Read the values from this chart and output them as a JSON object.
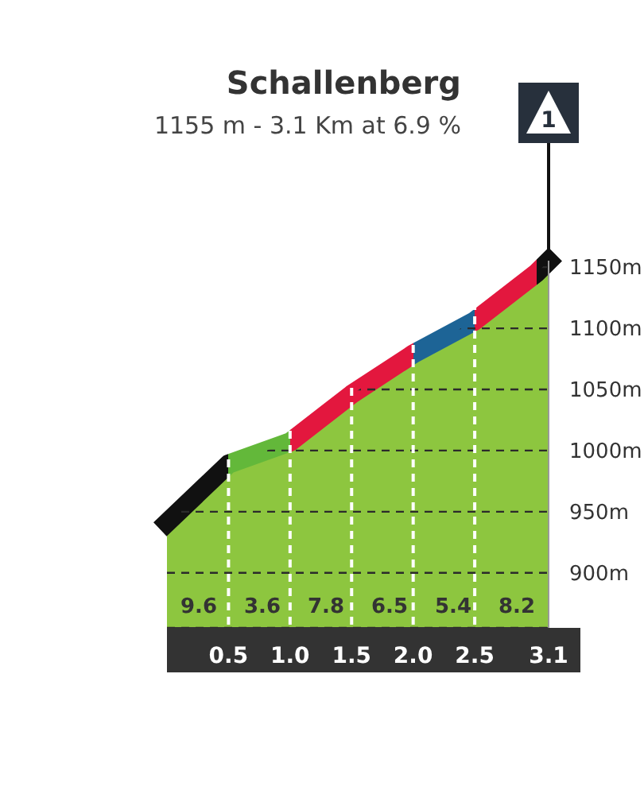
{
  "chart_data": {
    "type": "area",
    "title": "Schallenberg",
    "subtitle": "1155 m - 3.1 Km at 6.9 %",
    "x": [
      0,
      0.5,
      1,
      1.5,
      2,
      2.5,
      3,
      3.1
    ],
    "values": [
      941,
      989,
      1007,
      1046,
      1079,
      1106,
      1145,
      1155
    ],
    "color": "#8dc63f",
    "colors": [
      "#111111",
      "#63b83a",
      "#e3173e",
      "#e3173e",
      "#1d6496",
      "#e3173e",
      "#111111",
      "#111111"
    ],
    "xlim": [
      0,
      3.1
    ],
    "xticks": [
      0.5,
      {
        "value": 1,
        "label": "1.0"
      },
      1.5,
      {
        "value": 2,
        "label": "2.0"
      },
      2.5,
      3.1
    ],
    "ylim": [
      855,
      1180
    ],
    "yticks": [
      {
        "value": 900,
        "label": "900m"
      },
      {
        "value": 950,
        "label": "950m"
      },
      {
        "value": 1000,
        "label": "1000m"
      },
      {
        "value": 1050,
        "label": "1050m"
      },
      {
        "value": 1100,
        "label": "1100m"
      },
      {
        "value": 1150,
        "label": "1150m"
      }
    ],
    "grid": true,
    "annotations": [
      "9.6",
      "3.6",
      "7.8",
      "6.5",
      "5.4",
      "8.2",
      {
        "text": "1",
        "x": 3.1,
        "y": 1155
      }
    ]
  }
}
